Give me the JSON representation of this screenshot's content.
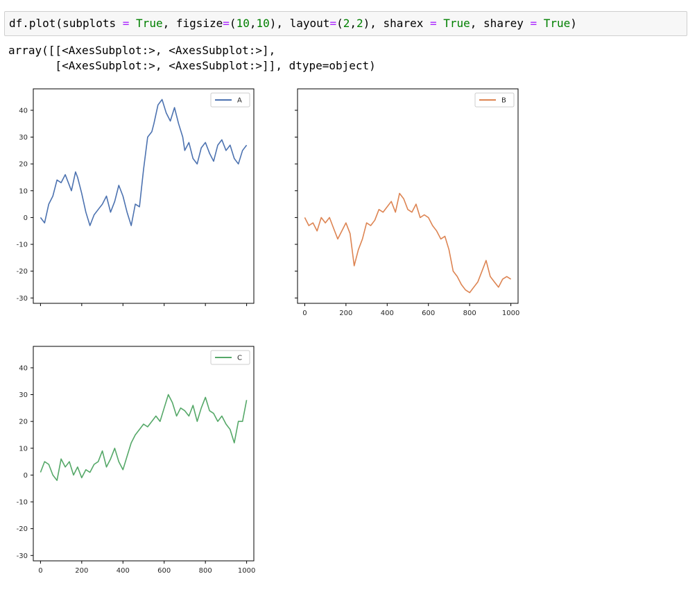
{
  "code": {
    "tokens": [
      {
        "text": "df.plot(subplots ",
        "cls": ""
      },
      {
        "text": "=",
        "cls": "tok-op"
      },
      {
        "text": " ",
        "cls": ""
      },
      {
        "text": "True",
        "cls": "tok-kw"
      },
      {
        "text": ", figsize",
        "cls": ""
      },
      {
        "text": "=",
        "cls": "tok-op"
      },
      {
        "text": "(",
        "cls": ""
      },
      {
        "text": "10",
        "cls": "tok-num"
      },
      {
        "text": ",",
        "cls": ""
      },
      {
        "text": "10",
        "cls": "tok-num"
      },
      {
        "text": "), layout",
        "cls": ""
      },
      {
        "text": "=",
        "cls": "tok-op"
      },
      {
        "text": "(",
        "cls": ""
      },
      {
        "text": "2",
        "cls": "tok-num"
      },
      {
        "text": ",",
        "cls": ""
      },
      {
        "text": "2",
        "cls": "tok-num"
      },
      {
        "text": "), sharex ",
        "cls": ""
      },
      {
        "text": "=",
        "cls": "tok-op"
      },
      {
        "text": " ",
        "cls": ""
      },
      {
        "text": "True",
        "cls": "tok-kw"
      },
      {
        "text": ", sharey ",
        "cls": ""
      },
      {
        "text": "=",
        "cls": "tok-op"
      },
      {
        "text": " ",
        "cls": ""
      },
      {
        "text": "True",
        "cls": "tok-kw"
      },
      {
        "text": ")",
        "cls": ""
      }
    ]
  },
  "output": {
    "line1": "array([[<AxesSubplot:>, <AxesSubplot:>],",
    "line2": "       [<AxesSubplot:>, <AxesSubplot:>]], dtype=object)"
  },
  "chart_data": [
    {
      "type": "line",
      "subplot": "top-left",
      "legend": "top-right",
      "ylim": [
        -32,
        48
      ],
      "xlim": [
        -35,
        1035
      ],
      "yticks": [
        -30,
        -20,
        -10,
        0,
        10,
        20,
        30,
        40
      ],
      "xticks": [
        0,
        200,
        400,
        600,
        800,
        1000
      ],
      "show_xtick_labels": false,
      "series": [
        {
          "name": "A",
          "color": "#4c72b0",
          "x": [
            0,
            20,
            40,
            60,
            80,
            100,
            120,
            150,
            170,
            180,
            200,
            220,
            240,
            260,
            280,
            300,
            320,
            340,
            360,
            380,
            400,
            420,
            440,
            460,
            480,
            500,
            520,
            540,
            550,
            570,
            590,
            610,
            630,
            650,
            670,
            690,
            700,
            720,
            740,
            760,
            780,
            800,
            820,
            840,
            860,
            880,
            900,
            920,
            940,
            960,
            980,
            1000
          ],
          "y": [
            0,
            -2,
            5,
            8,
            14,
            13,
            16,
            10,
            17,
            15,
            9,
            2,
            -3,
            1,
            3,
            5,
            8,
            2,
            6,
            12,
            8,
            2,
            -3,
            5,
            4,
            18,
            30,
            32,
            35,
            42,
            44,
            39,
            36,
            41,
            35,
            30,
            25,
            28,
            22,
            20,
            26,
            28,
            24,
            21,
            27,
            29,
            25,
            27,
            22,
            20,
            25,
            27
          ]
        }
      ]
    },
    {
      "type": "line",
      "subplot": "top-right",
      "legend": "top-right",
      "ylim": [
        -32,
        48
      ],
      "xlim": [
        -35,
        1035
      ],
      "yticks": [
        -30,
        -20,
        -10,
        0,
        10,
        20,
        30,
        40
      ],
      "xticks": [
        0,
        200,
        400,
        600,
        800,
        1000
      ],
      "show_ytick_labels": false,
      "xtick_labels": [
        "0",
        "200",
        "400",
        "600",
        "800",
        "1000"
      ],
      "series": [
        {
          "name": "B",
          "color": "#dd8452",
          "x": [
            0,
            20,
            40,
            60,
            80,
            100,
            120,
            140,
            160,
            180,
            200,
            220,
            240,
            260,
            280,
            300,
            320,
            340,
            360,
            380,
            400,
            420,
            440,
            460,
            480,
            500,
            520,
            540,
            560,
            580,
            600,
            620,
            640,
            660,
            680,
            700,
            720,
            740,
            760,
            780,
            800,
            820,
            840,
            860,
            880,
            900,
            920,
            940,
            960,
            980,
            1000
          ],
          "y": [
            0,
            -3,
            -2,
            -5,
            0,
            -2,
            0,
            -4,
            -8,
            -5,
            -2,
            -6,
            -18,
            -12,
            -8,
            -2,
            -3,
            -1,
            3,
            2,
            4,
            6,
            2,
            9,
            7,
            3,
            2,
            5,
            0,
            1,
            0,
            -3,
            -5,
            -8,
            -7,
            -12,
            -20,
            -22,
            -25,
            -27,
            -28,
            -26,
            -24,
            -20,
            -16,
            -22,
            -24,
            -26,
            -23,
            -22,
            -23
          ]
        }
      ]
    },
    {
      "type": "line",
      "subplot": "bottom-left",
      "legend": "top-right",
      "ylim": [
        -32,
        48
      ],
      "xlim": [
        -35,
        1035
      ],
      "yticks": [
        -30,
        -20,
        -10,
        0,
        10,
        20,
        30,
        40
      ],
      "xticks": [
        0,
        200,
        400,
        600,
        800,
        1000
      ],
      "xtick_labels": [
        "0",
        "200",
        "400",
        "600",
        "800",
        "1000"
      ],
      "series": [
        {
          "name": "C",
          "color": "#55a868",
          "x": [
            0,
            20,
            40,
            60,
            80,
            100,
            120,
            140,
            160,
            180,
            200,
            220,
            240,
            260,
            280,
            300,
            320,
            340,
            360,
            380,
            400,
            420,
            440,
            460,
            480,
            500,
            520,
            540,
            560,
            580,
            600,
            620,
            640,
            660,
            680,
            700,
            720,
            740,
            760,
            780,
            800,
            820,
            840,
            860,
            880,
            900,
            920,
            940,
            960,
            980,
            1000
          ],
          "y": [
            1,
            5,
            4,
            0,
            -2,
            6,
            3,
            5,
            0,
            3,
            -1,
            2,
            1,
            4,
            5,
            9,
            3,
            6,
            10,
            5,
            2,
            7,
            12,
            15,
            17,
            19,
            18,
            20,
            22,
            20,
            25,
            30,
            27,
            22,
            25,
            24,
            22,
            26,
            20,
            25,
            29,
            24,
            23,
            20,
            22,
            19,
            17,
            12,
            20,
            20,
            28
          ]
        }
      ]
    }
  ]
}
